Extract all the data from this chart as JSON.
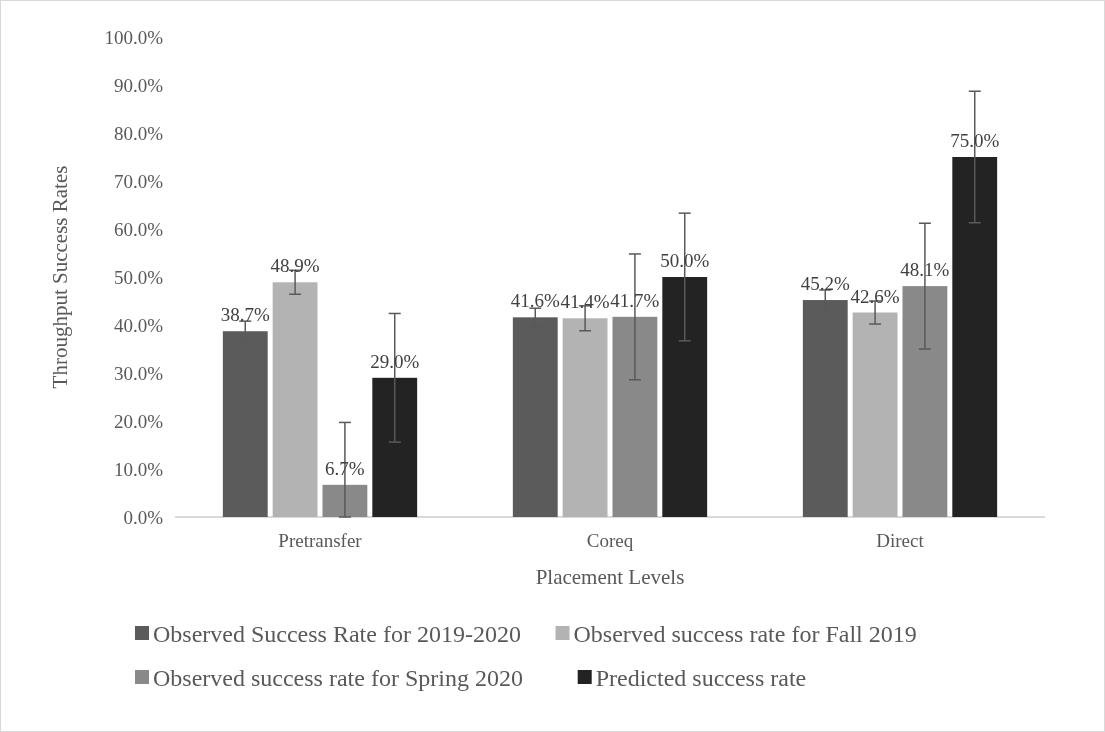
{
  "chart_data": {
    "type": "bar",
    "xlabel": "Placement Levels",
    "ylabel": "Throughput Success Rates",
    "categories": [
      "Pretransfer",
      "Coreq",
      "Direct"
    ],
    "series": [
      {
        "name": "Observed Success Rate for 2019-2020",
        "color": "#5b5b5b",
        "values": [
          38.7,
          41.6,
          45.2
        ],
        "value_labels": [
          "38.7%",
          "41.6%",
          "45.2%"
        ],
        "errors": [
          2.1,
          1.9,
          2.1
        ]
      },
      {
        "name": "Observed success rate for Fall 2019",
        "color": "#b3b3b3",
        "values": [
          48.9,
          41.4,
          42.6
        ],
        "value_labels": [
          "48.9%",
          "41.4%",
          "42.6%"
        ],
        "errors": [
          2.5,
          2.6,
          2.4
        ]
      },
      {
        "name": "Observed success rate for Spring 2020",
        "color": "#898989",
        "values": [
          6.7,
          41.7,
          48.1
        ],
        "value_labels": [
          "6.7%",
          "41.7%",
          "48.1%"
        ],
        "errors": [
          [
            0,
            19.7
          ],
          13.1,
          13.1
        ]
      },
      {
        "name": "Predicted success rate",
        "color": "#232323",
        "values": [
          29.0,
          50.0,
          75.0
        ],
        "value_labels": [
          "29.0%",
          "50.0%",
          "75.0%"
        ],
        "errors": [
          13.4,
          13.3,
          13.7
        ]
      }
    ],
    "ylim": [
      0,
      100
    ],
    "yticks": [
      {
        "value": 0,
        "label": "0.0%"
      },
      {
        "value": 10,
        "label": "10.0%"
      },
      {
        "value": 20,
        "label": "20.0%"
      },
      {
        "value": 30,
        "label": "30.0%"
      },
      {
        "value": 40,
        "label": "40.0%"
      },
      {
        "value": 50,
        "label": "50.0%"
      },
      {
        "value": 60,
        "label": "60.0%"
      },
      {
        "value": 70,
        "label": "70.0%"
      },
      {
        "value": 80,
        "label": "80.0%"
      },
      {
        "value": 90,
        "label": "90.0%"
      },
      {
        "value": 100,
        "label": "100.0%"
      }
    ],
    "grid": false,
    "legend": "bottom"
  }
}
